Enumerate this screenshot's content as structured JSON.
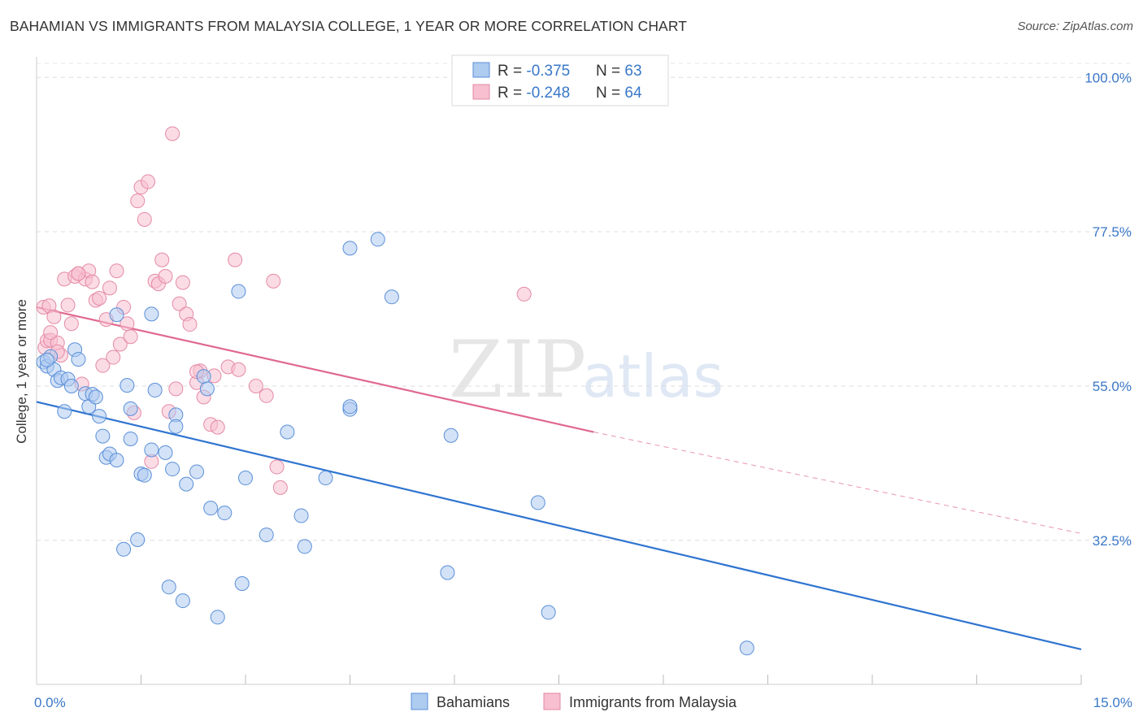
{
  "title": "BAHAMIAN VS IMMIGRANTS FROM MALAYSIA COLLEGE, 1 YEAR OR MORE CORRELATION CHART",
  "source": "Source: ZipAtlas.com",
  "watermark": {
    "zip": "ZIP",
    "atlas": "atlas"
  },
  "colors": {
    "blue_fill": "#aecbf0",
    "blue_stroke": "#5a8fd8",
    "blue_line": "#2f74d0",
    "pink_fill": "#f7bfd0",
    "pink_stroke": "#e58aa6",
    "pink_line": "#e06890",
    "tick_text": "#3a78c8",
    "grid": "#dddddd"
  },
  "legend": {
    "rows": [
      {
        "r_label": "R = ",
        "r_value": "-0.375",
        "n_label": "N = ",
        "n_value": "63"
      },
      {
        "r_label": "R = ",
        "r_value": "-0.248",
        "n_label": "N = ",
        "n_value": "64"
      }
    ]
  },
  "chart_data": {
    "type": "scatter",
    "title": "BAHAMIAN VS IMMIGRANTS FROM MALAYSIA COLLEGE, 1 YEAR OR MORE CORRELATION CHART",
    "xlabel": "",
    "ylabel": "College, 1 year or more",
    "xlim": [
      0,
      15
    ],
    "ylim": [
      11.5,
      103
    ],
    "x_tick_labels": [
      {
        "value": 0,
        "label": "0.0%"
      },
      {
        "value": 15,
        "label": "15.0%"
      }
    ],
    "y_tick_labels": [
      {
        "value": 100,
        "label": "100.0%"
      },
      {
        "value": 77.5,
        "label": "77.5%"
      },
      {
        "value": 55,
        "label": "55.0%"
      },
      {
        "value": 32.5,
        "label": "32.5%"
      }
    ],
    "y_grid": [
      100,
      77.5,
      55,
      32.5
    ],
    "legend_placement": "top-center",
    "series": [
      {
        "name": "Bahamians",
        "r": -0.375,
        "n": 63,
        "trend": {
          "x": [
            0,
            15
          ],
          "y": [
            52.7,
            16.6
          ]
        },
        "points": [
          [
            0.1,
            58.5
          ],
          [
            0.15,
            57.9
          ],
          [
            0.2,
            59.3
          ],
          [
            0.25,
            57.4
          ],
          [
            0.3,
            55.8
          ],
          [
            0.35,
            56.2
          ],
          [
            0.4,
            51.3
          ],
          [
            0.45,
            56.0
          ],
          [
            0.5,
            55.0
          ],
          [
            0.55,
            60.3
          ],
          [
            0.6,
            58.9
          ],
          [
            0.7,
            53.9
          ],
          [
            0.75,
            52.0
          ],
          [
            0.8,
            53.8
          ],
          [
            0.85,
            53.4
          ],
          [
            0.9,
            50.6
          ],
          [
            0.95,
            47.7
          ],
          [
            1.0,
            44.6
          ],
          [
            1.05,
            45.1
          ],
          [
            1.15,
            44.2
          ],
          [
            1.15,
            65.4
          ],
          [
            1.25,
            31.2
          ],
          [
            1.3,
            55.1
          ],
          [
            1.35,
            47.3
          ],
          [
            1.35,
            51.7
          ],
          [
            1.45,
            32.6
          ],
          [
            1.5,
            42.2
          ],
          [
            1.55,
            42.0
          ],
          [
            1.65,
            65.5
          ],
          [
            1.65,
            45.7
          ],
          [
            1.7,
            54.4
          ],
          [
            1.85,
            45.3
          ],
          [
            1.9,
            25.7
          ],
          [
            1.95,
            42.9
          ],
          [
            2.0,
            50.8
          ],
          [
            2.0,
            49.1
          ],
          [
            2.1,
            23.7
          ],
          [
            2.15,
            40.7
          ],
          [
            2.3,
            42.5
          ],
          [
            2.4,
            56.4
          ],
          [
            2.45,
            54.6
          ],
          [
            2.5,
            37.2
          ],
          [
            2.7,
            36.5
          ],
          [
            2.6,
            21.3
          ],
          [
            2.9,
            68.8
          ],
          [
            2.95,
            26.2
          ],
          [
            3.0,
            41.6
          ],
          [
            3.3,
            33.3
          ],
          [
            3.6,
            48.3
          ],
          [
            3.8,
            36.1
          ],
          [
            3.85,
            31.6
          ],
          [
            4.15,
            41.6
          ],
          [
            4.5,
            51.6
          ],
          [
            4.5,
            52.0
          ],
          [
            4.5,
            75.1
          ],
          [
            4.9,
            76.4
          ],
          [
            5.1,
            68.0
          ],
          [
            5.9,
            27.8
          ],
          [
            5.95,
            47.8
          ],
          [
            7.2,
            38.0
          ],
          [
            7.35,
            22.0
          ],
          [
            10.2,
            16.8
          ],
          [
            0.15,
            58.8
          ]
        ]
      },
      {
        "name": "Immigrants from Malaysia",
        "r": -0.248,
        "n": 64,
        "trend": {
          "x": [
            0,
            8
          ],
          "y": [
            66.5,
            48.3
          ]
        },
        "trend_extension": {
          "x": [
            8,
            15
          ],
          "y": [
            48.3,
            33.5
          ]
        },
        "points": [
          [
            0.1,
            66.5
          ],
          [
            0.12,
            60.6
          ],
          [
            0.15,
            61.6
          ],
          [
            0.18,
            66.7
          ],
          [
            0.2,
            61.7
          ],
          [
            0.25,
            65.1
          ],
          [
            0.3,
            61.3
          ],
          [
            0.35,
            59.5
          ],
          [
            0.4,
            70.6
          ],
          [
            0.45,
            66.8
          ],
          [
            0.5,
            64.1
          ],
          [
            0.55,
            71.0
          ],
          [
            0.6,
            71.4
          ],
          [
            0.65,
            55.3
          ],
          [
            0.7,
            70.6
          ],
          [
            0.75,
            71.8
          ],
          [
            0.8,
            70.2
          ],
          [
            0.85,
            67.5
          ],
          [
            0.9,
            67.8
          ],
          [
            0.95,
            58.0
          ],
          [
            1.0,
            64.7
          ],
          [
            1.05,
            69.3
          ],
          [
            1.1,
            59.2
          ],
          [
            1.15,
            71.8
          ],
          [
            1.2,
            61.1
          ],
          [
            1.25,
            66.5
          ],
          [
            1.3,
            64.1
          ],
          [
            1.35,
            62.2
          ],
          [
            1.4,
            51.1
          ],
          [
            1.45,
            82.0
          ],
          [
            1.5,
            84.0
          ],
          [
            1.55,
            79.3
          ],
          [
            1.6,
            84.8
          ],
          [
            1.65,
            44.0
          ],
          [
            1.7,
            70.3
          ],
          [
            1.75,
            69.9
          ],
          [
            1.8,
            73.4
          ],
          [
            1.85,
            71.0
          ],
          [
            1.9,
            51.3
          ],
          [
            1.95,
            91.8
          ],
          [
            2.0,
            54.6
          ],
          [
            2.05,
            67.0
          ],
          [
            2.1,
            70.1
          ],
          [
            2.15,
            65.5
          ],
          [
            2.2,
            64.0
          ],
          [
            2.3,
            55.5
          ],
          [
            2.35,
            57.2
          ],
          [
            2.4,
            53.4
          ],
          [
            2.5,
            49.4
          ],
          [
            2.55,
            56.5
          ],
          [
            2.6,
            49.0
          ],
          [
            2.75,
            57.8
          ],
          [
            2.9,
            57.4
          ],
          [
            2.85,
            73.4
          ],
          [
            3.15,
            55.0
          ],
          [
            3.3,
            53.6
          ],
          [
            3.4,
            70.3
          ],
          [
            3.45,
            43.2
          ],
          [
            3.5,
            40.2
          ],
          [
            7.0,
            68.4
          ],
          [
            0.6,
            71.4
          ],
          [
            0.2,
            62.8
          ],
          [
            0.3,
            60.0
          ],
          [
            2.3,
            57.1
          ]
        ]
      }
    ]
  }
}
